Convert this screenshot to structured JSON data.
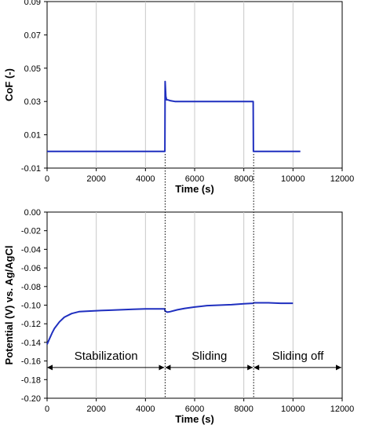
{
  "chart_data": [
    {
      "type": "line",
      "title": "",
      "xlabel": "Time (s)",
      "ylabel": "CoF (-)",
      "xlim": [
        0,
        12000
      ],
      "ylim": [
        -0.01,
        0.09
      ],
      "xticks": [
        "0",
        "2000",
        "4000",
        "6000",
        "8000",
        "10000",
        "12000"
      ],
      "yticks": [
        "-0.01",
        "0.01",
        "0.03",
        "0.05",
        "0.07",
        "0.09"
      ],
      "grid": "vertical",
      "color": "#1f2fbf",
      "series": [
        {
          "x": [
            0,
            4780,
            4790,
            4800,
            4830,
            4860,
            4900,
            5000,
            5200,
            5600,
            6000,
            6500,
            7000,
            7500,
            8000,
            8380,
            8390,
            8400,
            9000,
            9500,
            10300
          ],
          "values": [
            0.0,
            0.0,
            0.0,
            0.042,
            0.033,
            0.031,
            0.031,
            0.0305,
            0.03,
            0.03,
            0.03,
            0.03,
            0.03,
            0.03,
            0.03,
            0.03,
            0.0,
            0.0,
            0.0,
            0.0,
            0.0
          ]
        }
      ]
    },
    {
      "type": "line",
      "title": "",
      "xlabel": "Time (s)",
      "ylabel": "Potential (V) vs. Ag/AgCl",
      "xlim": [
        0,
        12000
      ],
      "ylim": [
        -0.2,
        0.0
      ],
      "xticks": [
        "0",
        "2000",
        "4000",
        "6000",
        "8000",
        "10000",
        "12000"
      ],
      "yticks": [
        "0.00",
        "-0.02",
        "-0.04",
        "-0.06",
        "-0.08",
        "-0.10",
        "-0.12",
        "-0.14",
        "-0.16",
        "-0.18",
        "-0.20"
      ],
      "grid": "vertical",
      "color": "#1f2fbf",
      "series": [
        {
          "x": [
            0,
            100,
            200,
            300,
            500,
            700,
            1000,
            1300,
            1600,
            2000,
            2500,
            3000,
            3500,
            4000,
            4500,
            4780,
            4800,
            4900,
            5000,
            5300,
            5600,
            6000,
            6500,
            7000,
            7500,
            8000,
            8380,
            8400,
            8600,
            9000,
            9500,
            10000
          ],
          "values": [
            -0.142,
            -0.136,
            -0.13,
            -0.125,
            -0.118,
            -0.113,
            -0.109,
            -0.107,
            -0.1065,
            -0.106,
            -0.1055,
            -0.105,
            -0.1045,
            -0.104,
            -0.104,
            -0.104,
            -0.1065,
            -0.1075,
            -0.107,
            -0.105,
            -0.1035,
            -0.102,
            -0.1005,
            -0.1,
            -0.0995,
            -0.0985,
            -0.098,
            -0.0975,
            -0.0975,
            -0.0975,
            -0.098,
            -0.098
          ]
        }
      ],
      "phases": [
        {
          "label": "Stabilization",
          "from": 0,
          "to": 4800
        },
        {
          "label": "Sliding",
          "from": 4800,
          "to": 8400
        },
        {
          "label": "Sliding off",
          "from": 8400,
          "to": 12000
        }
      ],
      "phase_arrow_y": -0.167,
      "dividers": [
        4800,
        8400
      ]
    }
  ]
}
